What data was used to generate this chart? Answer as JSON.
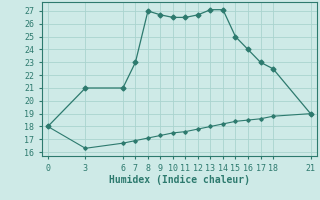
{
  "xlabel": "Humidex (Indice chaleur)",
  "bg_color": "#ceeae7",
  "grid_color": "#aad4cf",
  "line_color": "#2d7a6e",
  "xticks": [
    0,
    3,
    6,
    7,
    8,
    9,
    10,
    11,
    12,
    13,
    14,
    15,
    16,
    17,
    18,
    21
  ],
  "yticks": [
    16,
    17,
    18,
    19,
    20,
    21,
    22,
    23,
    24,
    25,
    26,
    27
  ],
  "xlim": [
    -0.5,
    21.5
  ],
  "ylim": [
    15.7,
    27.7
  ],
  "upper_x": [
    0,
    3,
    6,
    7,
    8,
    9,
    10,
    11,
    12,
    13,
    14,
    15,
    16,
    17,
    18,
    21
  ],
  "upper_y": [
    18,
    21,
    21,
    23,
    27,
    26.7,
    26.5,
    26.5,
    26.7,
    27.1,
    27.1,
    25,
    24,
    23,
    22.5,
    19
  ],
  "lower_x": [
    0,
    3,
    6,
    7,
    8,
    9,
    10,
    11,
    12,
    13,
    14,
    15,
    16,
    17,
    18,
    21
  ],
  "lower_y": [
    18,
    16.3,
    16.7,
    16.9,
    17.1,
    17.3,
    17.5,
    17.6,
    17.8,
    18.0,
    18.2,
    18.4,
    18.5,
    18.6,
    18.8,
    19.0
  ],
  "xlabel_fontsize": 7,
  "tick_fontsize": 6,
  "linewidth_upper": 0.9,
  "linewidth_lower": 0.8,
  "marker_size_upper": 2.5,
  "marker_size_lower": 1.8
}
